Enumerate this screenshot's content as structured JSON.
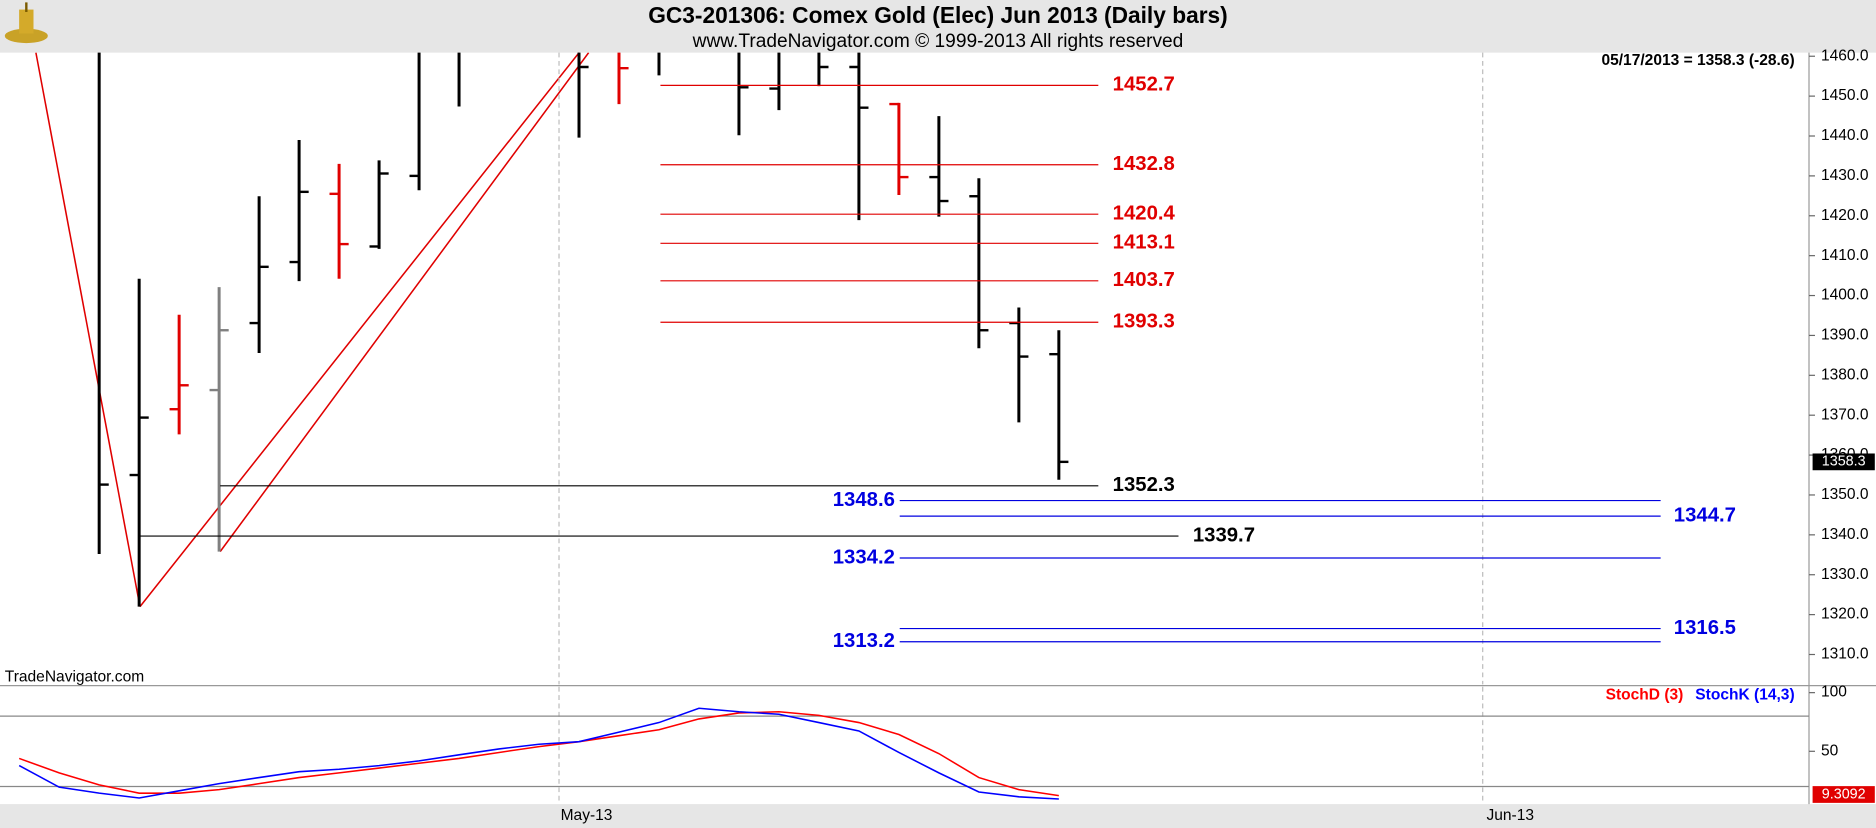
{
  "chart_data": [
    {
      "type": "ohlc",
      "title": "GC3-201306:  Comex Gold (Elec) Jun 2013  (Daily bars)",
      "subtitle": "www.TradeNavigator.com © 1999-2013 All rights reserved",
      "info": "05/17/2013 = 1358.3 (-28.6)",
      "watermark": "TradeNavigator.com",
      "x": [
        0,
        1,
        2,
        3,
        4,
        5,
        6,
        7,
        8,
        9,
        10,
        11,
        12,
        13,
        14,
        15,
        16,
        17,
        18,
        19,
        20,
        21,
        22,
        23,
        24
      ],
      "open": [
        1470,
        1355,
        1371.5,
        1376.3,
        1393.1,
        1408.4,
        1425.5,
        1412.3,
        1430,
        1463,
        1470,
        1472,
        1466,
        1463,
        1466,
        1470,
        1474,
        1451.9,
        1462,
        1457.3,
        1448,
        1429.7,
        1424.9,
        1393.1,
        1385.3
      ],
      "high": [
        1476,
        1404.2,
        1395.2,
        1402.1,
        1424.9,
        1439,
        1433,
        1433.9,
        1466,
        1474,
        1478,
        1476,
        1470,
        1472,
        1474,
        1478,
        1476,
        1468,
        1466,
        1463,
        1448.3,
        1445,
        1429.4,
        1397,
        1391.3
      ],
      "low": [
        1335.2,
        1322,
        1365.2,
        1335.8,
        1385.6,
        1403.6,
        1404.2,
        1411.7,
        1426.4,
        1447.4,
        1463,
        1461.5,
        1439.6,
        1448,
        1455.2,
        1464,
        1440.2,
        1446.5,
        1452.5,
        1418.9,
        1425.2,
        1419.8,
        1386.8,
        1368.2,
        1353.8
      ],
      "close": [
        1352.6,
        1369.4,
        1377.5,
        1391.3,
        1407.2,
        1426,
        1412.9,
        1430.6,
        1462,
        1468,
        1472,
        1466,
        1457.3,
        1457,
        1468,
        1475,
        1452.2,
        1462,
        1457.3,
        1447.1,
        1429.7,
        1423.7,
        1391.3,
        1384.7,
        1358.3
      ],
      "colors": [
        "#000000",
        "#000000",
        "#e00000",
        "#808080",
        "#000000",
        "#000000",
        "#e00000",
        "#000000",
        "#000000",
        "#000000",
        "#000000",
        "#000000",
        "#000000",
        "#e00000",
        "#000000",
        "#000000",
        "#000000",
        "#000000",
        "#000000",
        "#000000",
        "#e00000",
        "#000000",
        "#000000",
        "#000000",
        "#000000"
      ],
      "levels": [
        {
          "value": 1452.7,
          "color": "#e00000"
        },
        {
          "value": 1432.8,
          "color": "#e00000"
        },
        {
          "value": 1420.4,
          "color": "#e00000"
        },
        {
          "value": 1413.1,
          "color": "#e00000"
        },
        {
          "value": 1403.7,
          "color": "#e00000"
        },
        {
          "value": 1393.3,
          "color": "#e00000"
        },
        {
          "value": 1352.3,
          "color": "#000000"
        },
        {
          "value": 1339.7,
          "color": "#000000"
        },
        {
          "value": 1348.6,
          "color": "#0000e0"
        },
        {
          "value": 1344.7,
          "color": "#0000e0"
        },
        {
          "value": 1334.2,
          "color": "#0000e0"
        },
        {
          "value": 1316.5,
          "color": "#0000e0"
        },
        {
          "value": 1313.2,
          "color": "#0000e0"
        }
      ],
      "xlim": [
        -2.48,
        42.76
      ],
      "ylim": [
        1302.5,
        1460.9
      ],
      "yticks": [
        {
          "value": 1310,
          "label": "1310.0"
        },
        {
          "value": 1320,
          "label": "1320.0"
        },
        {
          "value": 1330,
          "label": "1330.0"
        },
        {
          "value": 1340,
          "label": "1340.0"
        },
        {
          "value": 1350,
          "label": "1350.0"
        },
        {
          "value": 1360,
          "label": "1360.0"
        },
        {
          "value": 1370,
          "label": "1370.0"
        },
        {
          "value": 1380,
          "label": "1380.0"
        },
        {
          "value": 1390,
          "label": "1390.0"
        },
        {
          "value": 1400,
          "label": "1400.0"
        },
        {
          "value": 1410,
          "label": "1410.0"
        },
        {
          "value": 1420,
          "label": "1420.0"
        },
        {
          "value": 1430,
          "label": "1430.0"
        },
        {
          "value": 1440,
          "label": "1440.0"
        },
        {
          "value": 1450,
          "label": "1450.0"
        },
        {
          "value": 1460,
          "label": "1460.0"
        }
      ]
    },
    {
      "type": "line",
      "x": [
        -2,
        -1,
        0,
        1,
        2,
        3,
        4,
        5,
        6,
        7,
        8,
        9,
        10,
        11,
        12,
        13,
        14,
        15,
        16,
        17,
        18,
        19,
        20,
        21,
        22,
        23,
        24
      ],
      "series": [
        {
          "name": "StochD (3)",
          "color": "#ff0000",
          "values": [
            43.9,
            31.6,
            21.4,
            14.3,
            14.3,
            17.3,
            22.4,
            27.6,
            31.6,
            35.7,
            39.8,
            43.9,
            49,
            54,
            58.2,
            63.3,
            68.4,
            77.6,
            82.7,
            83.7,
            80.6,
            74.5,
            64.3,
            48,
            27.6,
            17.3,
            12.2
          ]
        },
        {
          "name": "StochK (14,3)",
          "color": "#0000ff",
          "values": [
            37.8,
            19.4,
            14.3,
            10.2,
            16.3,
            22.4,
            27.6,
            32.6,
            34.7,
            37.8,
            41.8,
            47,
            52,
            56,
            58.2,
            66.3,
            74.5,
            86.7,
            83.7,
            81.6,
            74.5,
            67.3,
            49,
            31.6,
            15.3,
            11.2,
            9.3092
          ]
        }
      ],
      "reference_lines": [
        80,
        20
      ],
      "xlim": [
        -2.48,
        42.76
      ],
      "ylim": [
        5,
        106
      ],
      "yticks": [
        50,
        100
      ],
      "xticks": [
        {
          "value": 11.5,
          "label": "May-13"
        },
        {
          "value": 34.6,
          "label": "Jun-13"
        }
      ]
    }
  ]
}
